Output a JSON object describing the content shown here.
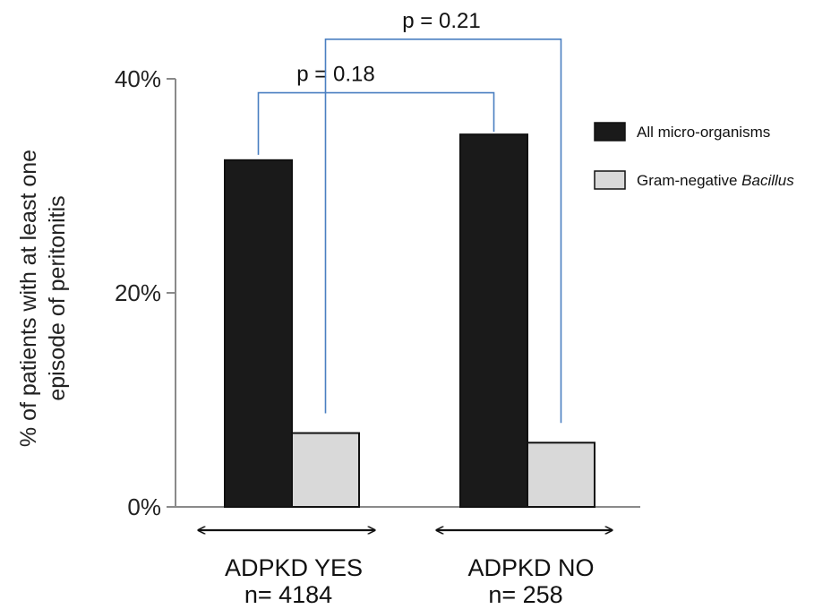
{
  "chart_data": {
    "type": "bar",
    "title": "",
    "ylabel_line1": "% of patients with at least one",
    "ylabel_line2": "episode of peritonitis",
    "ylim": [
      0,
      40
    ],
    "yticks": [
      {
        "value": 0,
        "label": "0%"
      },
      {
        "value": 20,
        "label": "20%"
      },
      {
        "value": 40,
        "label": "40%"
      }
    ],
    "categories": [
      {
        "name": "ADPKD YES",
        "n": "n= 4184"
      },
      {
        "name": "ADPKD NO",
        "n": "n= 258"
      }
    ],
    "series": [
      {
        "name": "All micro-organisms",
        "color": "#1a1a1a",
        "values": [
          32.4,
          34.8
        ]
      },
      {
        "name": "Gram-negative ",
        "name_italic": "Bacillus",
        "color": "#d9d9d9",
        "values": [
          6.9,
          6.0
        ]
      }
    ],
    "comparisons": [
      {
        "label": "p = 0.18",
        "series": 0,
        "from": 0,
        "to": 1,
        "bracket_value": 38.7
      },
      {
        "label": "p = 0.21",
        "series": 1,
        "from": 0,
        "to": 1,
        "bracket_value": 43.7
      }
    ],
    "grid": false,
    "legend_position": "right",
    "bracket_color": "#4a7fc1"
  }
}
